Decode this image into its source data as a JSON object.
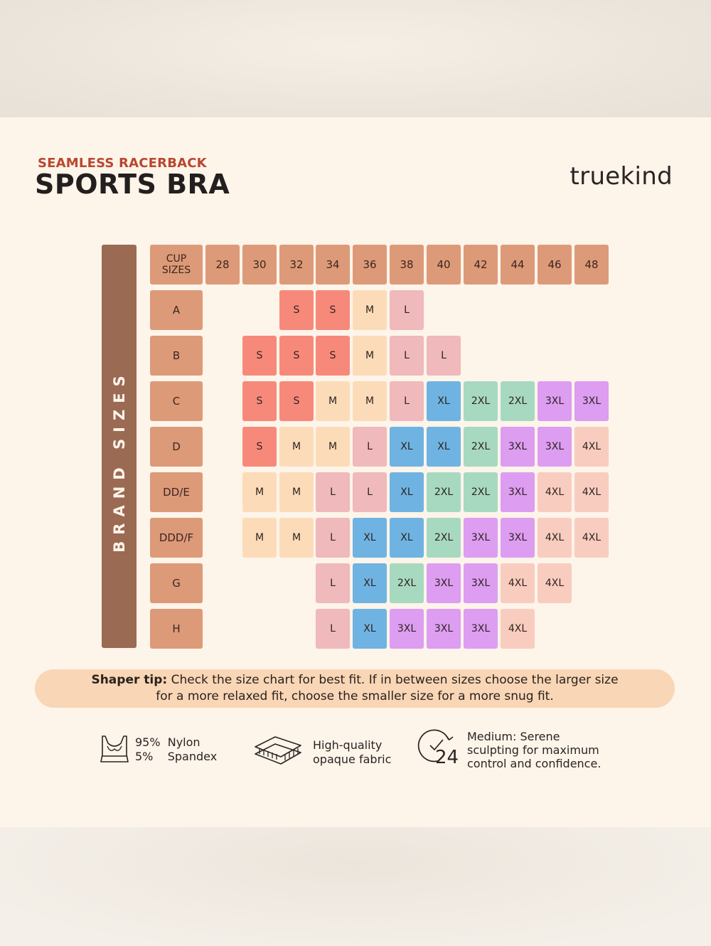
{
  "header": {
    "subtitle": "SEAMLESS RACERBACK",
    "title": "SPORTS BRA",
    "brand": "truekind"
  },
  "side_label": "BRAND SIZES",
  "chart": {
    "corner_label": "CUP\nSIZES",
    "bands": [
      "28",
      "30",
      "32",
      "34",
      "36",
      "38",
      "40",
      "42",
      "44",
      "46",
      "48"
    ],
    "cups": [
      "A",
      "B",
      "C",
      "D",
      "DD/E",
      "DDD/F",
      "G",
      "H"
    ],
    "grid": [
      [
        "",
        "",
        "S",
        "S",
        "M",
        "L",
        "",
        "",
        "",
        "",
        ""
      ],
      [
        "",
        "S",
        "S",
        "S",
        "M",
        "L",
        "L",
        "",
        "",
        "",
        ""
      ],
      [
        "",
        "S",
        "S",
        "M",
        "M",
        "L",
        "XL",
        "2XL",
        "2XL",
        "3XL",
        "3XL"
      ],
      [
        "",
        "S",
        "M",
        "M",
        "L",
        "XL",
        "XL",
        "2XL",
        "3XL",
        "3XL",
        "4XL"
      ],
      [
        "",
        "M",
        "M",
        "L",
        "L",
        "XL",
        "2XL",
        "2XL",
        "3XL",
        "4XL",
        "4XL"
      ],
      [
        "",
        "M",
        "M",
        "L",
        "XL",
        "XL",
        "2XL",
        "3XL",
        "3XL",
        "4XL",
        "4XL"
      ],
      [
        "",
        "",
        "",
        "L",
        "XL",
        "2XL",
        "3XL",
        "3XL",
        "4XL",
        "4XL",
        ""
      ],
      [
        "",
        "",
        "",
        "L",
        "XL",
        "3XL",
        "3XL",
        "3XL",
        "4XL",
        "",
        ""
      ]
    ],
    "size_colors": {
      "S": "#f7897a",
      "M": "#fcdcb8",
      "L": "#f0b9bc",
      "XL": "#6fb3e2",
      "2XL": "#a7d9c1",
      "3XL": "#dd9df1",
      "4XL": "#f8cdbf"
    },
    "header_color": "#dd9a78"
  },
  "tip": {
    "lead": "Shaper tip:",
    "line1": " Check the size chart for best fit. If in between sizes choose the larger size",
    "line2": "for a more relaxed fit, choose the smaller size for a more snug fit."
  },
  "features": [
    {
      "icon": "sports-bra-icon",
      "lines": [
        "95%  Nylon",
        "5%    Spandex"
      ]
    },
    {
      "icon": "fabric-layers-icon",
      "lines": [
        "High-quality",
        "opaque fabric"
      ]
    },
    {
      "icon": "clock-24-icon",
      "lines": [
        "Medium: Serene",
        "sculpting for maximum",
        "control and confidence."
      ]
    }
  ]
}
